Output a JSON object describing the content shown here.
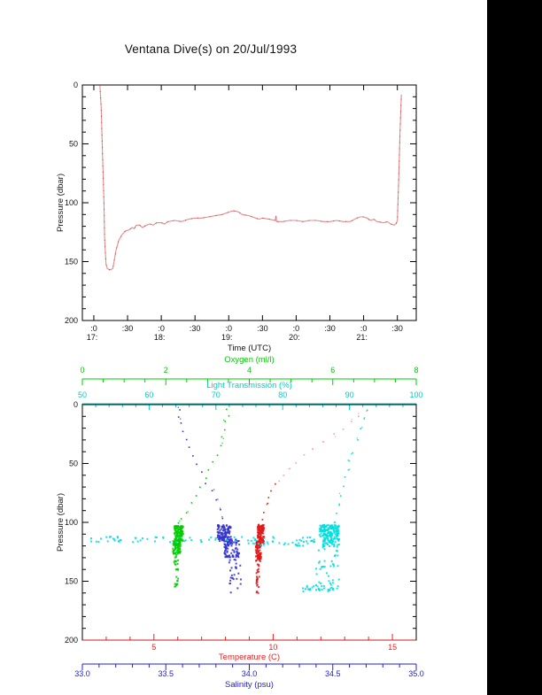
{
  "page": {
    "background": "#ffffff",
    "margin_bar_color": "#000000",
    "title": "Ventana Dive(s) on 20/Jul/1993"
  },
  "chart_data": [
    {
      "type": "line",
      "title": "Ventana Dive(s) on 20/Jul/1993",
      "xlabel": "Time (UTC)",
      "ylabel": "Pressure (dbar)",
      "xlim": [
        16.83,
        21.78
      ],
      "ylim": [
        0,
        200
      ],
      "y_ticks": [
        0,
        50,
        100,
        150,
        200
      ],
      "y_tick_labels": [
        "0",
        "50",
        "100",
        "150",
        "200"
      ],
      "y_minor_step": 10,
      "x_ticks": [
        {
          "t": 17.0,
          "label": ":0",
          "hour": "17:"
        },
        {
          "t": 17.5,
          "label": ":30",
          "hour": ""
        },
        {
          "t": 18.0,
          "label": ":0",
          "hour": "18:"
        },
        {
          "t": 18.5,
          "label": ":30",
          "hour": ""
        },
        {
          "t": 19.0,
          "label": ":0",
          "hour": "19:"
        },
        {
          "t": 19.5,
          "label": ":30",
          "hour": ""
        },
        {
          "t": 20.0,
          "label": ":0",
          "hour": "20:"
        },
        {
          "t": 20.5,
          "label": ":30",
          "hour": ""
        },
        {
          "t": 21.0,
          "label": ":0",
          "hour": "21:"
        },
        {
          "t": 21.5,
          "label": ":30",
          "hour": ""
        }
      ],
      "line_color": "#ee8888",
      "speckle_color": "#444444",
      "points": [
        [
          17.09,
          0
        ],
        [
          17.11,
          20
        ],
        [
          17.13,
          60
        ],
        [
          17.15,
          100
        ],
        [
          17.16,
          130
        ],
        [
          17.18,
          152
        ],
        [
          17.2,
          156
        ],
        [
          17.24,
          157
        ],
        [
          17.28,
          156
        ],
        [
          17.3,
          150
        ],
        [
          17.33,
          140
        ],
        [
          17.37,
          132
        ],
        [
          17.42,
          127
        ],
        [
          17.47,
          124
        ],
        [
          17.52,
          123
        ],
        [
          17.57,
          121
        ],
        [
          17.6,
          122
        ],
        [
          17.63,
          119
        ],
        [
          17.68,
          119
        ],
        [
          17.72,
          121
        ],
        [
          17.78,
          119
        ],
        [
          17.83,
          118
        ],
        [
          17.88,
          119
        ],
        [
          17.93,
          117
        ],
        [
          18.0,
          117
        ],
        [
          18.05,
          118
        ],
        [
          18.1,
          116
        ],
        [
          18.2,
          115
        ],
        [
          18.3,
          116
        ],
        [
          18.4,
          114
        ],
        [
          18.5,
          113
        ],
        [
          18.6,
          113
        ],
        [
          18.7,
          112
        ],
        [
          18.8,
          111
        ],
        [
          18.9,
          110
        ],
        [
          19.0,
          108
        ],
        [
          19.05,
          107
        ],
        [
          19.1,
          107
        ],
        [
          19.15,
          108
        ],
        [
          19.2,
          110
        ],
        [
          19.3,
          111
        ],
        [
          19.4,
          113
        ],
        [
          19.45,
          114
        ],
        [
          19.5,
          113
        ],
        [
          19.6,
          114
        ],
        [
          19.69,
          115
        ],
        [
          19.7,
          111
        ],
        [
          19.71,
          116
        ],
        [
          19.8,
          116
        ],
        [
          19.9,
          115
        ],
        [
          20.0,
          115
        ],
        [
          20.1,
          116
        ],
        [
          20.2,
          115
        ],
        [
          20.3,
          115
        ],
        [
          20.4,
          116
        ],
        [
          20.5,
          116
        ],
        [
          20.6,
          115
        ],
        [
          20.7,
          116
        ],
        [
          20.8,
          116
        ],
        [
          20.9,
          113
        ],
        [
          20.95,
          112
        ],
        [
          21.0,
          112
        ],
        [
          21.05,
          113
        ],
        [
          21.1,
          115
        ],
        [
          21.15,
          114
        ],
        [
          21.2,
          116
        ],
        [
          21.3,
          117
        ],
        [
          21.35,
          116
        ],
        [
          21.4,
          118
        ],
        [
          21.45,
          119
        ],
        [
          21.48,
          118
        ],
        [
          21.5,
          115
        ],
        [
          21.52,
          80
        ],
        [
          21.54,
          40
        ],
        [
          21.56,
          8
        ]
      ]
    },
    {
      "type": "scatter",
      "ylabel": "Pressure (dbar)",
      "ylim": [
        0,
        200
      ],
      "y_ticks": [
        0,
        50,
        100,
        150,
        200
      ],
      "y_tick_labels": [
        "0",
        "50",
        "100",
        "150",
        "200"
      ],
      "y_minor_step": 10,
      "axes": [
        {
          "id": "oxygen",
          "label": "Oxygen (ml/l)",
          "color": "#00cc00",
          "range": [
            0,
            8
          ],
          "ticks": [
            0,
            2,
            4,
            6,
            8
          ],
          "tick_labels": [
            "0",
            "2",
            "4",
            "6",
            "8"
          ],
          "minor_step": 0.5
        },
        {
          "id": "transmission",
          "label": "Light Transmission (%)",
          "color": "#00cccc",
          "range": [
            50,
            100
          ],
          "ticks": [
            50,
            60,
            70,
            80,
            90,
            100
          ],
          "tick_labels": [
            "50",
            "60",
            "70",
            "80",
            "90",
            "100"
          ],
          "minor_step": 2
        },
        {
          "id": "temperature",
          "label": "Temperature (C)",
          "color": "#ee2222",
          "range": [
            2,
            16
          ],
          "ticks": [
            5,
            10,
            15
          ],
          "tick_labels": [
            "5",
            "10",
            "15"
          ],
          "minor_step": 1
        },
        {
          "id": "salinity",
          "label": "Salinity (psu)",
          "color": "#2222cc",
          "range": [
            33,
            35
          ],
          "ticks": [
            33,
            33.5,
            34,
            34.5,
            35
          ],
          "tick_labels": [
            "33.0",
            "33.5",
            "34.0",
            "34.5",
            "35.0"
          ],
          "minor_step": 0.1
        }
      ],
      "series": [
        {
          "name": "oxygen",
          "axis": "oxygen",
          "color": "#00cc00",
          "trail": [
            [
              3.45,
              4
            ],
            [
              3.5,
              9
            ],
            [
              3.42,
              15
            ],
            [
              3.38,
              21
            ],
            [
              3.35,
              28
            ],
            [
              3.3,
              35
            ],
            [
              3.22,
              42
            ],
            [
              3.15,
              49
            ],
            [
              3.05,
              56
            ],
            [
              2.95,
              63
            ],
            [
              2.85,
              70
            ],
            [
              2.72,
              77
            ],
            [
              2.6,
              84
            ],
            [
              2.5,
              91
            ],
            [
              2.4,
              97
            ],
            [
              2.32,
              101
            ]
          ],
          "clusters": [
            {
              "v": [
                2.2,
                2.42
              ],
              "p": [
                103,
                116
              ],
              "n": 110
            },
            {
              "v": [
                2.17,
                2.35
              ],
              "p": [
                114,
                127
              ],
              "n": 90
            },
            {
              "v": [
                2.2,
                2.3
              ],
              "p": [
                127,
                157
              ],
              "n": 26
            }
          ]
        },
        {
          "name": "salinity",
          "axis": "salinity",
          "color": "#3333cc",
          "trail": [
            [
              33.58,
              4
            ],
            [
              33.57,
              10
            ],
            [
              33.59,
              16
            ],
            [
              33.61,
              22
            ],
            [
              33.62,
              29
            ],
            [
              33.64,
              36
            ],
            [
              33.66,
              43
            ],
            [
              33.68,
              50
            ],
            [
              33.71,
              58
            ],
            [
              33.74,
              66
            ],
            [
              33.77,
              74
            ],
            [
              33.8,
              82
            ],
            [
              33.82,
              89
            ],
            [
              33.84,
              96
            ]
          ],
          "clusters": [
            {
              "v": [
                33.81,
                33.89
              ],
              "p": [
                102,
                116
              ],
              "n": 110
            },
            {
              "v": [
                33.85,
                33.94
              ],
              "p": [
                114,
                130
              ],
              "n": 90
            },
            {
              "v": [
                33.88,
                33.95
              ],
              "p": [
                130,
                160
              ],
              "n": 26
            }
          ]
        },
        {
          "name": "temperature-upper",
          "axis": "temperature",
          "color": "#f4a2a2",
          "trail": [
            [
              13.9,
              5
            ],
            [
              13.6,
              10
            ],
            [
              13.3,
              15
            ],
            [
              12.9,
              20
            ],
            [
              12.5,
              25
            ],
            [
              12.1,
              31
            ],
            [
              11.7,
              37
            ],
            [
              11.3,
              43
            ],
            [
              11.0,
              49
            ],
            [
              10.7,
              55
            ],
            [
              10.45,
              60
            ],
            [
              10.3,
              64
            ]
          ],
          "clusters": []
        },
        {
          "name": "temperature",
          "axis": "temperature",
          "color": "#e01818",
          "trail": [
            [
              10.1,
              68
            ],
            [
              9.95,
              73
            ],
            [
              9.85,
              79
            ],
            [
              9.75,
              85
            ],
            [
              9.65,
              91
            ],
            [
              9.55,
              97
            ]
          ],
          "clusters": [
            {
              "v": [
                9.35,
                9.62
              ],
              "p": [
                102,
                118
              ],
              "n": 110
            },
            {
              "v": [
                9.27,
                9.5
              ],
              "p": [
                116,
                133
              ],
              "n": 80
            },
            {
              "v": [
                9.3,
                9.42
              ],
              "p": [
                133,
                160
              ],
              "n": 24
            }
          ]
        },
        {
          "name": "transmission",
          "axis": "transmission",
          "color": "#00dede",
          "trail": [
            [
              92.5,
              5
            ],
            [
              92.1,
              12
            ],
            [
              91.6,
              20
            ],
            [
              91.1,
              30
            ],
            [
              90.6,
              40
            ],
            [
              90.1,
              47
            ],
            [
              89.7,
              55
            ],
            [
              89.3,
              62
            ],
            [
              89.0,
              70
            ],
            [
              88.6,
              78
            ],
            [
              88.3,
              85
            ],
            [
              88.0,
              92
            ],
            [
              87.7,
              99
            ]
          ],
          "clusters": [
            {
              "v": [
                85.5,
                88.5
              ],
              "p": [
                102,
                112
              ],
              "n": 120
            },
            {
              "v": [
                86,
                88.5
              ],
              "p": [
                110,
                121
              ],
              "n": 70
            },
            {
              "v": [
                51,
                85.5
              ],
              "p": [
                112,
                117
              ],
              "n": 75
            },
            {
              "v": [
                74,
                84
              ],
              "p": [
                117,
                120
              ],
              "n": 22
            },
            {
              "v": [
                85,
                88.5
              ],
              "p": [
                121,
                158
              ],
              "n": 40
            },
            {
              "v": [
                83,
                88
              ],
              "p": [
                154,
                159
              ],
              "n": 26
            }
          ]
        }
      ]
    }
  ]
}
